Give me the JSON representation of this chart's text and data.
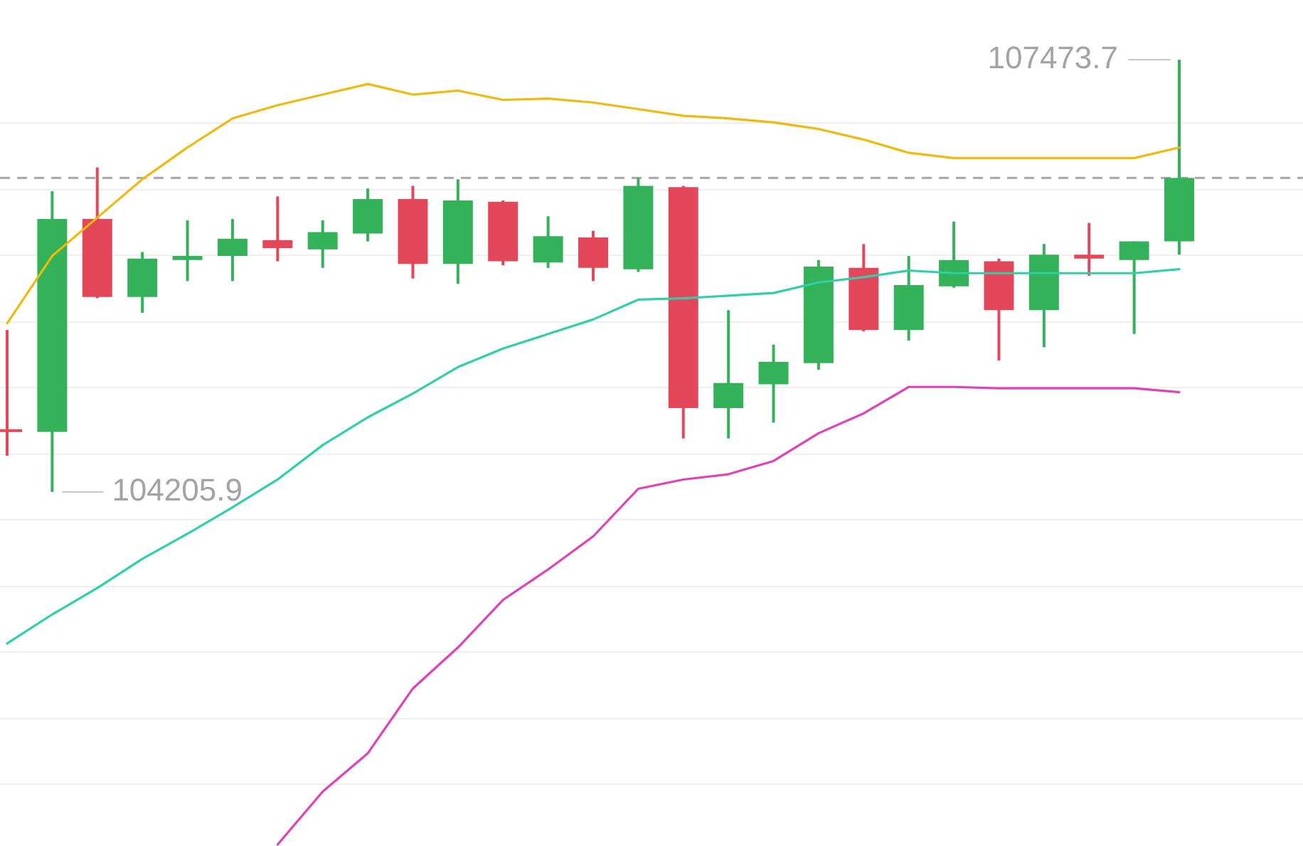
{
  "chart_data": {
    "type": "candlestick",
    "categories": [
      null,
      null,
      null,
      null,
      null,
      null,
      null,
      null,
      null,
      null,
      null,
      null,
      null,
      null,
      null,
      null,
      null,
      null,
      null,
      null,
      null,
      null,
      null,
      null,
      null,
      null,
      null
    ],
    "ohlc": [
      [
        104680,
        105430,
        104480,
        104660
      ],
      [
        104660,
        106480,
        104205.9,
        106270
      ],
      [
        106270,
        106660,
        105670,
        105680
      ],
      [
        105680,
        106020,
        105560,
        105970
      ],
      [
        105960,
        106260,
        105800,
        105990
      ],
      [
        105990,
        106270,
        105800,
        106120
      ],
      [
        106110,
        106440,
        105950,
        106050
      ],
      [
        106040,
        106260,
        105900,
        106170
      ],
      [
        106160,
        106500,
        106100,
        106420
      ],
      [
        106420,
        106520,
        105820,
        105930
      ],
      [
        105930,
        106570,
        105780,
        106410
      ],
      [
        106400,
        106410,
        105920,
        105950
      ],
      [
        105940,
        106290,
        105900,
        106140
      ],
      [
        106130,
        106180,
        105800,
        105900
      ],
      [
        105890,
        106580,
        105870,
        106520
      ],
      [
        106510,
        106520,
        104610,
        104840
      ],
      [
        104840,
        105580,
        104610,
        105030
      ],
      [
        105020,
        105320,
        104730,
        105190
      ],
      [
        105180,
        105960,
        105130,
        105910
      ],
      [
        105900,
        106080,
        105420,
        105430
      ],
      [
        105430,
        105990,
        105350,
        105770
      ],
      [
        105760,
        106250,
        105750,
        105960
      ],
      [
        105950,
        105970,
        105200,
        105580
      ],
      [
        105580,
        106080,
        105300,
        106000
      ],
      [
        106000,
        106240,
        105840,
        105970
      ],
      [
        105960,
        106100,
        105400,
        106100
      ],
      [
        106100,
        107473.7,
        106000,
        106580
      ]
    ],
    "colors": [
      "#e5475a",
      "#33b25a",
      "#e5475a",
      "#33b25a",
      "#33b25a",
      "#33b25a",
      "#e5475a",
      "#33b25a",
      "#33b25a",
      "#e5475a",
      "#33b25a",
      "#e5475a",
      "#33b25a",
      "#e5475a",
      "#33b25a",
      "#e5475a",
      "#33b25a",
      "#33b25a",
      "#33b25a",
      "#e5475a",
      "#33b25a",
      "#33b25a",
      "#e5475a",
      "#33b25a",
      "#e5475a",
      "#33b25a",
      "#33b25a"
    ],
    "series": [
      {
        "type": "line",
        "color": "#f0b90b",
        "values": [
          105480,
          105990,
          106280,
          106570,
          106810,
          107030,
          107130,
          107210,
          107290,
          107210,
          107240,
          107170,
          107180,
          107150,
          107100,
          107050,
          107030,
          107000,
          106950,
          106870,
          106770,
          106730,
          106730,
          106730,
          106730,
          106730,
          106810
        ]
      },
      {
        "type": "line",
        "color": "#2fd0a9",
        "values": [
          103060,
          103280,
          103480,
          103700,
          103890,
          104090,
          104300,
          104560,
          104770,
          104950,
          105150,
          105290,
          105400,
          105510,
          105660,
          105670,
          105690,
          105710,
          105790,
          105830,
          105880,
          105860,
          105860,
          105860,
          105860,
          105860,
          105890
        ]
      },
      {
        "type": "line",
        "color": "#e040b8",
        "values": [
          null,
          null,
          null,
          null,
          null,
          null,
          101540,
          101940,
          102230,
          102720,
          103030,
          103390,
          103620,
          103870,
          104230,
          104300,
          104340,
          104440,
          104650,
          104800,
          105000,
          105000,
          104990,
          104990,
          104990,
          104990,
          104960
        ]
      }
    ],
    "yticks": [
      {
        "value": 102000,
        "label": null
      },
      {
        "value": 102500,
        "label": null
      },
      {
        "value": 103000,
        "label": null
      },
      {
        "value": 103500,
        "label": null
      },
      {
        "value": 104000,
        "label": null
      },
      {
        "value": 104500,
        "label": null
      },
      {
        "value": 105000,
        "label": null
      },
      {
        "value": 105500,
        "label": null
      },
      {
        "value": 106000,
        "label": null
      },
      {
        "value": 106500,
        "label": null
      },
      {
        "value": 107000,
        "label": null
      }
    ],
    "grid": "y",
    "tick_labels": false,
    "marker": "none",
    "line_style": "solid",
    "ref_lines": [
      {
        "axis": "y",
        "value": 106580,
        "label": null,
        "color": "#a6a6a6",
        "line_style": "dashed"
      }
    ],
    "annotations": [
      "107473.7",
      "104205.9"
    ]
  }
}
